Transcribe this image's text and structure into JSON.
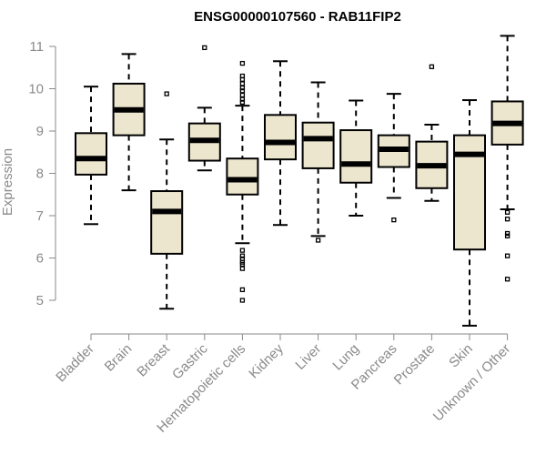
{
  "chart_data": {
    "type": "boxplot",
    "title": "ENSG00000107560 - RAB11FIP2",
    "ylabel": "Expression",
    "xlabel": "",
    "ylim": [
      4.3,
      11.4
    ],
    "yticks": [
      5,
      6,
      7,
      8,
      9,
      10,
      11
    ],
    "box_fill": "#ede6cf",
    "categories": [
      "Bladder",
      "Brain",
      "Breast",
      "Gastric",
      "Hematopoietic cells",
      "Kidney",
      "Liver",
      "Lung",
      "Pancreas",
      "Prostate",
      "Skin",
      "Unknown / Other"
    ],
    "series": [
      {
        "category": "Bladder",
        "whisker_low": 6.8,
        "q1": 7.97,
        "median": 8.35,
        "q3": 8.95,
        "whisker_high": 10.05,
        "outliers": []
      },
      {
        "category": "Brain",
        "whisker_low": 7.6,
        "q1": 8.9,
        "median": 9.5,
        "q3": 10.12,
        "whisker_high": 10.82,
        "outliers": []
      },
      {
        "category": "Breast",
        "whisker_low": 4.8,
        "q1": 6.1,
        "median": 7.1,
        "q3": 7.58,
        "whisker_high": 8.8,
        "outliers": [
          9.88
        ]
      },
      {
        "category": "Gastric",
        "whisker_low": 8.07,
        "q1": 8.3,
        "median": 8.78,
        "q3": 9.18,
        "whisker_high": 9.55,
        "outliers": [
          10.97
        ]
      },
      {
        "category": "Hematopoietic cells",
        "whisker_low": 6.35,
        "q1": 7.5,
        "median": 7.85,
        "q3": 8.35,
        "whisker_high": 9.6,
        "outliers": [
          10.6,
          10.3,
          10.22,
          10.12,
          10.02,
          9.95,
          9.85,
          9.75,
          9.68,
          6.18,
          6.05,
          5.98,
          5.9,
          5.85,
          5.75,
          5.25,
          5.0
        ]
      },
      {
        "category": "Kidney",
        "whisker_low": 6.78,
        "q1": 8.33,
        "median": 8.73,
        "q3": 9.38,
        "whisker_high": 10.65,
        "outliers": []
      },
      {
        "category": "Liver",
        "whisker_low": 6.52,
        "q1": 8.12,
        "median": 8.82,
        "q3": 9.2,
        "whisker_high": 10.15,
        "outliers": [
          6.42
        ]
      },
      {
        "category": "Lung",
        "whisker_low": 7.0,
        "q1": 7.78,
        "median": 8.22,
        "q3": 9.02,
        "whisker_high": 9.72,
        "outliers": []
      },
      {
        "category": "Pancreas",
        "whisker_low": 7.42,
        "q1": 8.15,
        "median": 8.57,
        "q3": 8.9,
        "whisker_high": 9.88,
        "outliers": [
          6.9
        ]
      },
      {
        "category": "Prostate",
        "whisker_low": 7.35,
        "q1": 7.65,
        "median": 8.18,
        "q3": 8.75,
        "whisker_high": 9.15,
        "outliers": [
          10.52
        ]
      },
      {
        "category": "Skin",
        "whisker_low": 4.4,
        "q1": 6.2,
        "median": 8.45,
        "q3": 8.9,
        "whisker_high": 9.73,
        "outliers": []
      },
      {
        "category": "Unknown / Other",
        "whisker_low": 7.15,
        "q1": 8.68,
        "median": 9.18,
        "q3": 9.7,
        "whisker_high": 11.25,
        "outliers": [
          7.08,
          6.92,
          6.58,
          6.52,
          6.05,
          5.5
        ]
      }
    ]
  }
}
